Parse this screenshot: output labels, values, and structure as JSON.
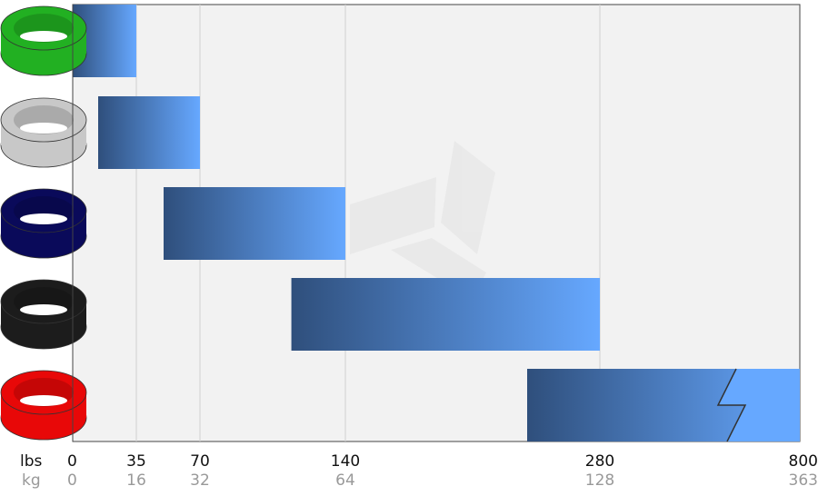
{
  "chart_data": {
    "type": "range_bar",
    "low": [
      0,
      14,
      50,
      114,
      240
    ],
    "high": [
      35,
      70,
      140,
      280,
      800
    ],
    "ring_colors": [
      "#22b022",
      "#c8c8c8",
      "#0a0a5a",
      "#1c1c1c",
      "#e80808"
    ],
    "bar_colors": [
      "#2f4f7c",
      "#66a8ff"
    ],
    "x_unit": "lbs",
    "x2_unit": "kg",
    "xlim": [
      0,
      800
    ],
    "xticks": [
      0,
      35,
      70,
      140,
      280,
      800
    ],
    "x2ticks": [
      0,
      16,
      32,
      64,
      128,
      363
    ],
    "axis_break": true,
    "grid": true
  }
}
